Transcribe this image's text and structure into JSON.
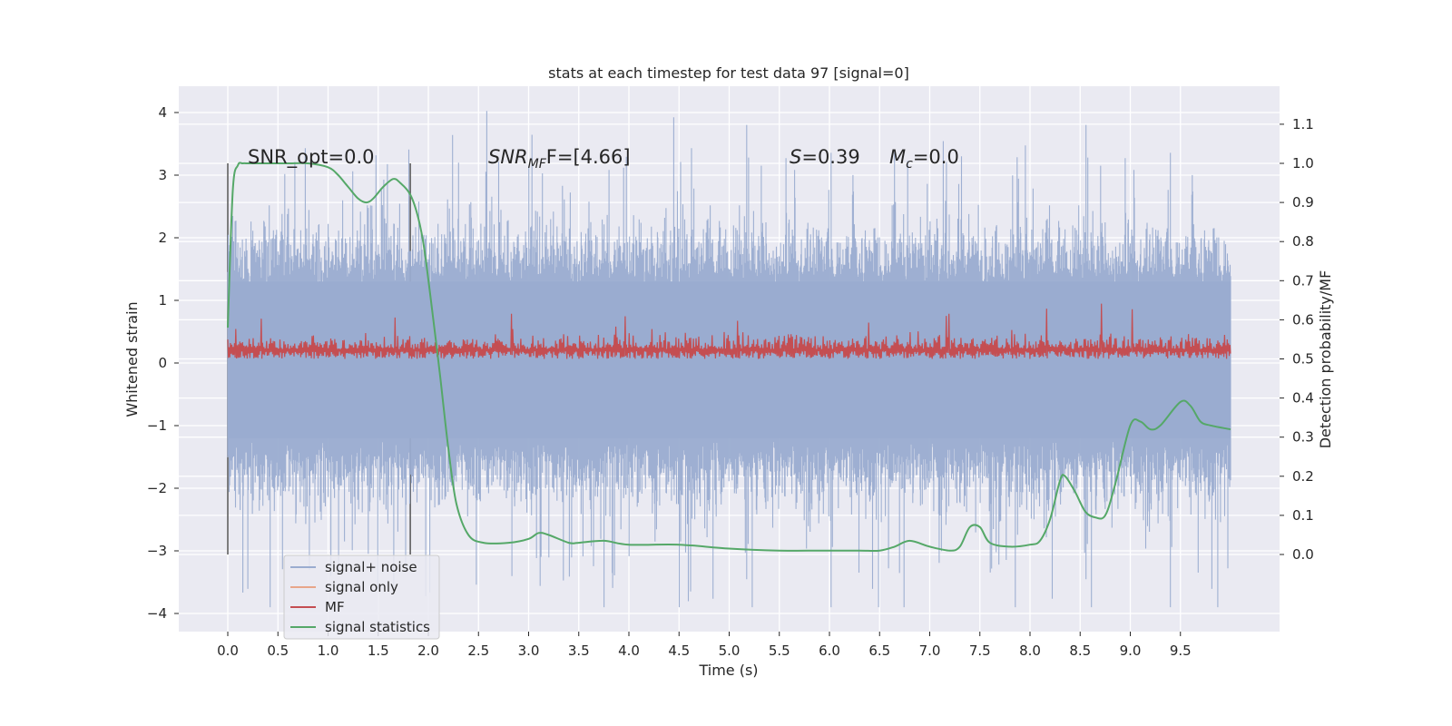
{
  "chart_data": {
    "type": "line",
    "title": "stats at each timestep for test data 97 [signal=0]",
    "xlabel": "Time (s)",
    "ylabel_left": "Whitened strain",
    "ylabel_right": "Detection probability/MF",
    "xlim": [
      -0.2,
      10.8
    ],
    "ylim_left": [
      -4.25,
      4.4
    ],
    "ylim_right": [
      -0.2,
      1.2
    ],
    "x_ticks": [
      "0.0",
      "0.5",
      "1.0",
      "1.5",
      "2.0",
      "2.5",
      "3.0",
      "3.5",
      "4.0",
      "4.5",
      "5.0",
      "5.5",
      "6.0",
      "6.5",
      "7.0",
      "7.5",
      "8.0",
      "8.5",
      "9.0",
      "9.5"
    ],
    "y_left_ticks": [
      -4,
      -3,
      -2,
      -1,
      0,
      1,
      2,
      3,
      4
    ],
    "y_right_ticks": [
      "0.0",
      "0.1",
      "0.2",
      "0.3",
      "0.4",
      "0.5",
      "0.6",
      "0.7",
      "0.8",
      "0.9",
      "1.0",
      "1.1"
    ],
    "grid": true,
    "legend_position": "lower-left",
    "vertical_lines": [
      0.0,
      1.82
    ],
    "annotations": {
      "snr_opt": "SNR_opt=0.0",
      "snr_mf_base": "SNR",
      "snr_mf_sub": "MF",
      "snr_mf_rest": "F=[4.66]",
      "s_base": "S",
      "s_rest": "=0.39",
      "mc_base": "M",
      "mc_sub": "c",
      "mc_rest": "=0.0"
    },
    "series": [
      {
        "name": "signal+ noise",
        "color": "#9aacd0",
        "axis": "left",
        "x_range": [
          0.0,
          10.0
        ],
        "envelope": "noise ±2 typical, peaks to ±4"
      },
      {
        "name": "signal only",
        "color": "#e8a58a",
        "axis": "left",
        "values": []
      },
      {
        "name": "MF",
        "color": "#c44e52",
        "axis": "right",
        "x_range": [
          0.0,
          10.0
        ],
        "envelope": "0.50–0.65 with spikes to ~0.67"
      },
      {
        "name": "signal statistics",
        "color": "#55a868",
        "axis": "right",
        "x": [
          0.0,
          0.05,
          0.1,
          0.15,
          0.2,
          0.4,
          0.6,
          0.8,
          1.0,
          1.1,
          1.2,
          1.3,
          1.38,
          1.45,
          1.55,
          1.65,
          1.72,
          1.82,
          1.9,
          1.96,
          2.05,
          2.12,
          2.2,
          2.28,
          2.4,
          2.55,
          2.8,
          3.0,
          3.1,
          3.2,
          3.4,
          3.5,
          3.75,
          4.0,
          4.5,
          5.0,
          5.5,
          6.0,
          6.3,
          6.5,
          6.65,
          6.8,
          7.0,
          7.2,
          7.3,
          7.4,
          7.5,
          7.6,
          7.8,
          8.0,
          8.1,
          8.2,
          8.3,
          8.35,
          8.45,
          8.55,
          8.65,
          8.75,
          8.85,
          9.0,
          9.1,
          9.2,
          9.3,
          9.5,
          9.6,
          9.7,
          9.8,
          10.0
        ],
        "y": [
          0.58,
          0.93,
          0.995,
          1.0,
          1.0,
          1.0,
          1.0,
          1.0,
          0.99,
          0.97,
          0.94,
          0.91,
          0.9,
          0.91,
          0.94,
          0.96,
          0.95,
          0.92,
          0.86,
          0.78,
          0.6,
          0.45,
          0.27,
          0.13,
          0.05,
          0.03,
          0.03,
          0.04,
          0.055,
          0.05,
          0.03,
          0.03,
          0.035,
          0.025,
          0.025,
          0.015,
          0.01,
          0.01,
          0.01,
          0.01,
          0.02,
          0.035,
          0.02,
          0.01,
          0.02,
          0.07,
          0.07,
          0.03,
          0.02,
          0.025,
          0.035,
          0.09,
          0.19,
          0.2,
          0.16,
          0.11,
          0.095,
          0.1,
          0.18,
          0.33,
          0.34,
          0.32,
          0.33,
          0.39,
          0.38,
          0.34,
          0.33,
          0.32
        ]
      }
    ]
  }
}
